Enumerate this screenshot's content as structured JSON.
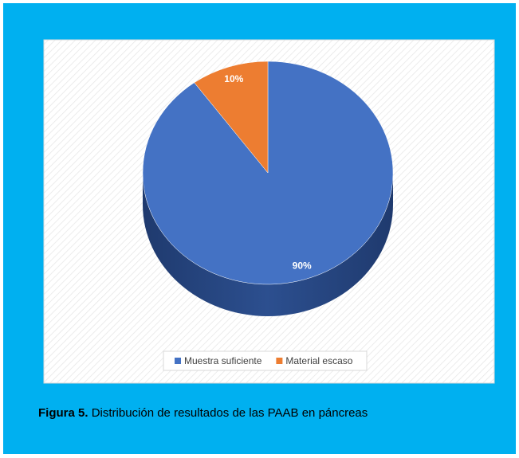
{
  "chart_data": {
    "type": "pie",
    "series": [
      {
        "name": "Muestra suficiente",
        "color": "#4472c4",
        "values": [
          90
        ],
        "value_labels": [
          "90%"
        ]
      },
      {
        "name": "Material escaso",
        "color": "#ed7d31",
        "values": [
          10
        ],
        "value_labels": [
          "10%"
        ]
      }
    ],
    "legend": "bottom",
    "caption_label": "Figura 5.",
    "caption": "Distribución de resultados de las PAAB en páncreas"
  }
}
